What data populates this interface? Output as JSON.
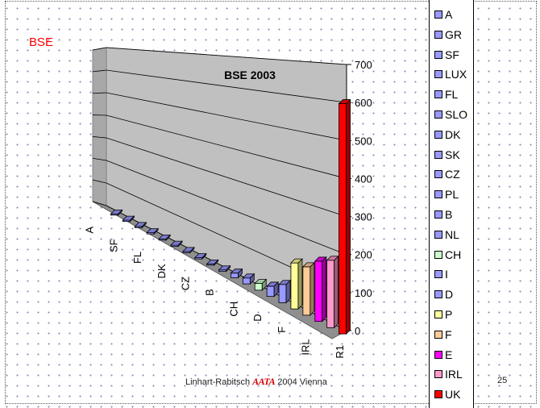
{
  "slide_label": "BSE",
  "footer": {
    "authors": "Linhart-Rabitsch",
    "logo": "AATA",
    "event": "2004 Vienna"
  },
  "page_number": "25",
  "chart_data": {
    "type": "bar",
    "title": "BSE 2003",
    "xlabel": "",
    "ylabel": "",
    "ylim": [
      0,
      700
    ],
    "yticks": [
      0,
      100,
      200,
      300,
      400,
      500,
      600,
      700
    ],
    "categories": [
      "A",
      "GR",
      "SF",
      "LUX",
      "FL",
      "SLO",
      "DK",
      "SK",
      "CZ",
      "PL",
      "B",
      "NL",
      "CH",
      "I",
      "D",
      "P",
      "F",
      "E",
      "IRL",
      "UK"
    ],
    "x_tick_labels": [
      "A",
      "SF",
      "FL",
      "DK",
      "CZ",
      "B",
      "CH",
      "D",
      "F",
      "IRL"
    ],
    "depth_label": "R1",
    "values": [
      0,
      0,
      0,
      0,
      0,
      1,
      2,
      2,
      4,
      5,
      15,
      19,
      21,
      31,
      54,
      133,
      137,
      167,
      183,
      612
    ],
    "colors": [
      "#9999ff",
      "#9999ff",
      "#9999ff",
      "#9999ff",
      "#9999ff",
      "#9999ff",
      "#9999ff",
      "#9999ff",
      "#9999ff",
      "#9999ff",
      "#9999ff",
      "#9999ff",
      "#ccffcc",
      "#9999ff",
      "#9999ff",
      "#ffff99",
      "#ffcc99",
      "#ff00ff",
      "#ff99cc",
      "#ff0000"
    ],
    "legend_position": "right"
  }
}
